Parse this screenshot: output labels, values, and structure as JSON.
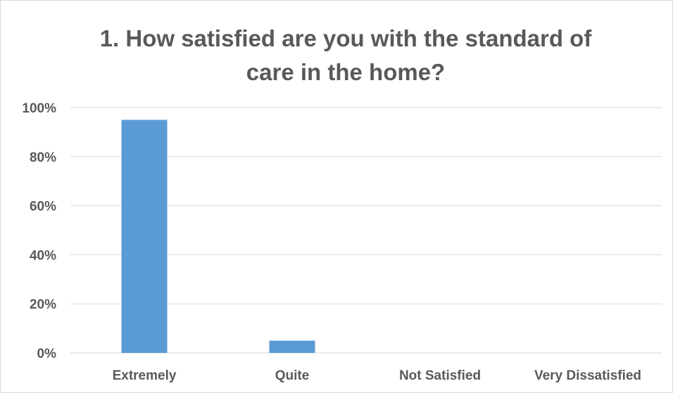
{
  "chart_data": {
    "type": "bar",
    "title_lines": [
      "1. How satisfied are you with the standard of",
      "care in the home?"
    ],
    "categories": [
      "Extremely",
      "Quite",
      "Not Satisfied",
      "Very Dissatisfied"
    ],
    "values": [
      95,
      5,
      0,
      0
    ],
    "ylim": [
      0,
      100
    ],
    "yticks": [
      0,
      20,
      40,
      60,
      80,
      100
    ],
    "ytick_labels": [
      "0%",
      "20%",
      "40%",
      "60%",
      "80%",
      "100%"
    ],
    "xlabel": "",
    "ylabel": "",
    "grid": true,
    "legend": "none",
    "bar_color": "#5b9bd5",
    "grid_color": "#d9d9d9"
  }
}
